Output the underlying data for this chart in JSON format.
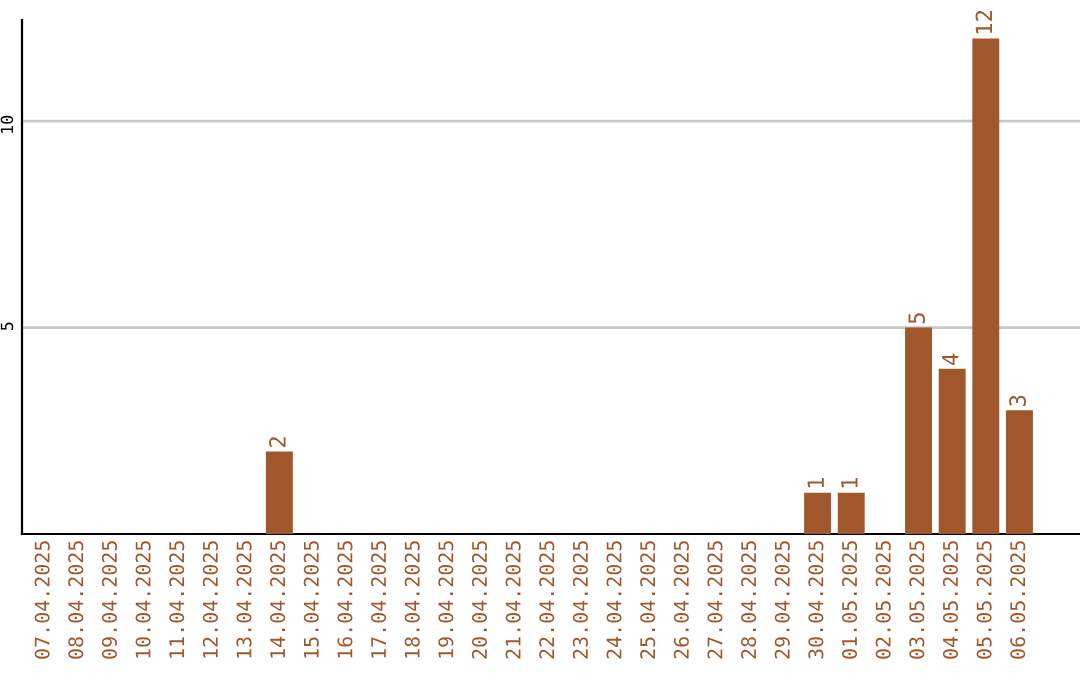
{
  "chart_data": {
    "type": "bar",
    "categories": [
      "07.04.2025",
      "08.04.2025",
      "09.04.2025",
      "10.04.2025",
      "11.04.2025",
      "12.04.2025",
      "13.04.2025",
      "14.04.2025",
      "15.04.2025",
      "16.04.2025",
      "17.04.2025",
      "18.04.2025",
      "19.04.2025",
      "20.04.2025",
      "21.04.2025",
      "22.04.2025",
      "23.04.2025",
      "24.04.2025",
      "25.04.2025",
      "26.04.2025",
      "27.04.2025",
      "28.04.2025",
      "29.04.2025",
      "30.04.2025",
      "01.05.2025",
      "02.05.2025",
      "03.05.2025",
      "04.05.2025",
      "05.05.2025",
      "06.05.2025"
    ],
    "values": [
      0,
      0,
      0,
      0,
      0,
      0,
      0,
      2,
      0,
      0,
      0,
      0,
      0,
      0,
      0,
      0,
      0,
      0,
      0,
      0,
      0,
      0,
      0,
      1,
      1,
      0,
      5,
      4,
      12,
      3
    ],
    "value_labels": [
      null,
      null,
      null,
      null,
      null,
      null,
      null,
      "2",
      null,
      null,
      null,
      null,
      null,
      null,
      null,
      null,
      null,
      null,
      null,
      null,
      null,
      null,
      null,
      "1",
      "1",
      null,
      "5",
      "4",
      "12",
      "3"
    ],
    "color": "#a0572b",
    "ylim": [
      0,
      12.45
    ],
    "yticks": [
      5,
      10
    ],
    "grid": "y"
  }
}
